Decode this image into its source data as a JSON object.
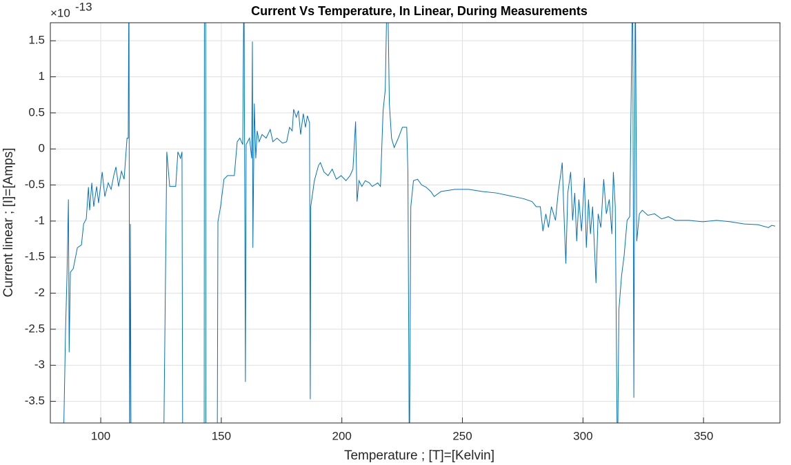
{
  "chart_data": {
    "type": "line",
    "title": "Current Vs Temperature, In Linear, During Measurements",
    "x_label": "Temperature ; [T]=[Kelvin]",
    "y_label": "Current linear ; [I]=[Amps]",
    "y_multiplier": {
      "base": "×10",
      "exponent": "-13"
    },
    "xlim": [
      79.1,
      381.7
    ],
    "ylim": [
      -3.8,
      1.75
    ],
    "xticks": [
      100,
      150,
      200,
      250,
      300,
      350
    ],
    "yticks": [
      -3.5,
      -3,
      -2.5,
      -2,
      -1.5,
      -1,
      -0.5,
      0,
      0.5,
      1,
      1.5
    ],
    "grid": true,
    "x": [
      84.6,
      85.4,
      86,
      86.6,
      86.9,
      87.4,
      88.6,
      90.3,
      92,
      92.9,
      94,
      94.9,
      95.4,
      96.3,
      97.1,
      98.3,
      99.1,
      100.6,
      101.7,
      103.1,
      104.3,
      105.4,
      106.3,
      107.4,
      108.6,
      109.7,
      110.9,
      111.4,
      111.7,
      112,
      112.3,
      112.6,
      119,
      126,
      127.4,
      128.6,
      131.1,
      132,
      133.1,
      133.7,
      134,
      138,
      142.9,
      143,
      143.5,
      143.6,
      146,
      148.3,
      148.6,
      149.7,
      151.1,
      152.6,
      155.4,
      156.6,
      157.7,
      158.9,
      159.4,
      160,
      160.3,
      161.7,
      162.6,
      162.9,
      163.1,
      163.7,
      164.3,
      164.9,
      165.7,
      166.9,
      168.6,
      170.3,
      171.4,
      173.1,
      175.4,
      177.1,
      178.3,
      179.4,
      180,
      181.1,
      182,
      182.9,
      184,
      184.9,
      185.7,
      186.6,
      186.9,
      187.1,
      188.6,
      190.3,
      191.1,
      192.6,
      194.3,
      196,
      197.7,
      199.7,
      201.7,
      203.4,
      204.6,
      205.7,
      206.3,
      207.1,
      208.3,
      209.7,
      211.4,
      212.6,
      214.9,
      216,
      217.1,
      218,
      218.9,
      219.7,
      220.6,
      221.7,
      223.4,
      225.1,
      226.9,
      227.4,
      228,
      228.6,
      229.7,
      231.4,
      233.1,
      234.9,
      236.9,
      238.3,
      241.1,
      246.9,
      252.6,
      258.3,
      264,
      269.7,
      275.4,
      278.9,
      280.6,
      282.3,
      283.4,
      284.6,
      285.7,
      286.9,
      288.6,
      289.7,
      290.9,
      291.4,
      292,
      292.9,
      293.7,
      294.9,
      295.7,
      296.6,
      297.4,
      298.3,
      299.4,
      300.6,
      301.4,
      302.3,
      303.1,
      304,
      304.9,
      305.4,
      306.3,
      307.4,
      308.6,
      309.7,
      310.9,
      312,
      312.6,
      313.4,
      314.3,
      314.9,
      316,
      317.1,
      318.3,
      319.4,
      320.6,
      321.1,
      321.7,
      322.3,
      323.4,
      324.6,
      326.9,
      329.7,
      332.6,
      335.4,
      338.3,
      344,
      349.7,
      355.4,
      361.1,
      366.9,
      372.6,
      376.9,
      378.3,
      379.7
    ],
    "series": [
      {
        "name": "Current",
        "color": "#0072bd",
        "values": [
          -4,
          -2.52,
          -1.76,
          -0.7,
          -2.82,
          -1.71,
          -1.66,
          -1.37,
          -1.33,
          -1.04,
          -0.97,
          -0.53,
          -0.85,
          -0.47,
          -0.8,
          -0.52,
          -0.75,
          -0.32,
          -0.66,
          -0.47,
          -0.56,
          -0.37,
          -0.25,
          -0.52,
          -0.31,
          -0.42,
          0.15,
          0.15,
          2.5,
          -4.5,
          -1.04,
          -4.5,
          null,
          -4.5,
          -0.04,
          -0.52,
          -0.52,
          -0.04,
          -0.13,
          -0.04,
          -4.5,
          null,
          -4.5,
          2.6,
          2.6,
          -4.5,
          null,
          -4.5,
          -1.01,
          -0.8,
          -0.42,
          -0.37,
          -0.37,
          0.1,
          0.15,
          0.06,
          2.5,
          -3.23,
          0.06,
          0.15,
          -0.13,
          1.49,
          -1.37,
          0.63,
          -0.13,
          0.25,
          0.1,
          0.2,
          0.15,
          0.27,
          0.1,
          0.15,
          0.08,
          0.1,
          0.3,
          0.25,
          0.55,
          0.44,
          0.53,
          0.2,
          0.49,
          0.3,
          0.46,
          0.36,
          -3.47,
          -0.8,
          -0.44,
          -0.23,
          -0.19,
          -0.32,
          -0.37,
          -0.28,
          -0.42,
          -0.37,
          -0.44,
          -0.37,
          -0.28,
          0.38,
          -0.73,
          -0.44,
          -0.52,
          -0.44,
          -0.47,
          -0.52,
          -0.47,
          -0.52,
          0.53,
          0.82,
          2.5,
          0.63,
          0.15,
          0.02,
          0.15,
          0.3,
          0.3,
          -0.32,
          -4.5,
          -0.8,
          -0.44,
          -0.42,
          -0.5,
          -0.53,
          -0.59,
          -0.66,
          -0.59,
          -0.56,
          -0.56,
          -0.59,
          -0.61,
          -0.65,
          -0.69,
          -0.73,
          -0.8,
          -0.8,
          -1.14,
          -0.9,
          -1.09,
          -0.8,
          -0.99,
          -0.61,
          -0.32,
          -0.19,
          -0.8,
          -1.59,
          -0.61,
          -0.32,
          -0.99,
          -0.61,
          -1.28,
          -0.7,
          -1.14,
          -0.4,
          -1.37,
          -0.7,
          -1.18,
          -0.8,
          -1.47,
          -1.86,
          -0.9,
          -1.09,
          -0.42,
          -0.9,
          -0.7,
          -1.18,
          -0.32,
          -0.8,
          -4.5,
          -2.23,
          -1.76,
          -1.47,
          -0.99,
          -0.94,
          2.5,
          -3.45,
          2.5,
          -1.28,
          -0.9,
          -0.85,
          -0.92,
          -0.9,
          -0.97,
          -0.94,
          -0.99,
          -0.99,
          -1.01,
          -0.99,
          -1.01,
          -1.04,
          -1.05,
          -1.09,
          -1.06,
          -1.07
        ]
      }
    ]
  }
}
